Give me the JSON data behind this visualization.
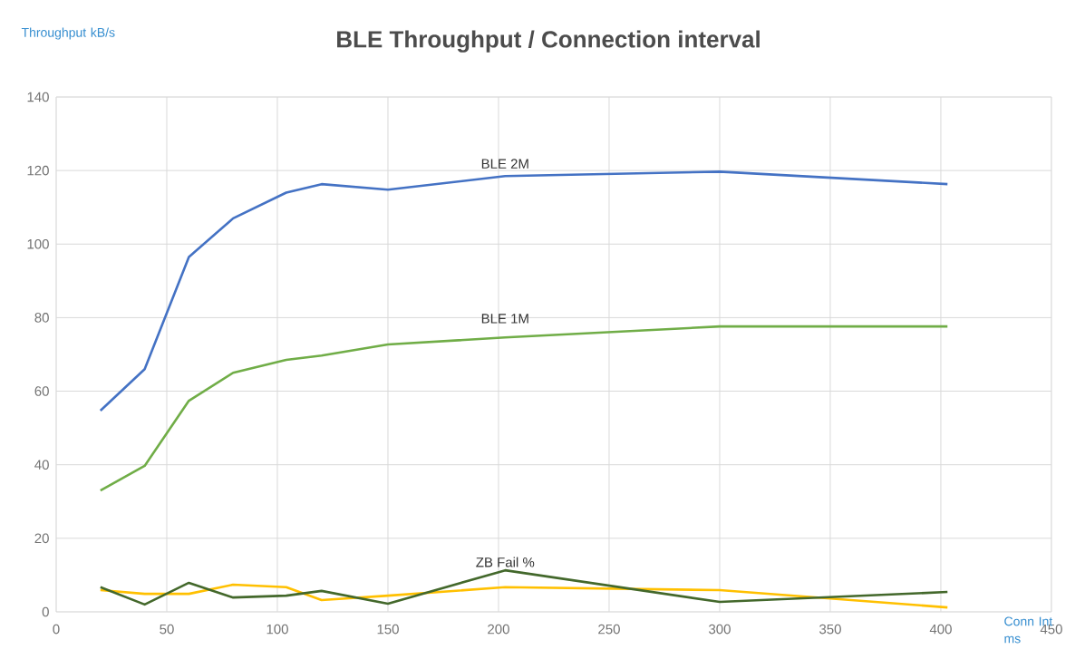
{
  "chart_data": {
    "type": "line",
    "title": "BLE Throughput / Connection interval",
    "ylabel": "Throughput kB/s",
    "xlabel": "Conn Int ms",
    "x": [
      20,
      40,
      60,
      80,
      104,
      120,
      150,
      203,
      300,
      403
    ],
    "series": [
      {
        "name": "BLE 2M",
        "color": "#4472c4",
        "values": [
          54.7,
          66,
          96.5,
          107,
          114,
          116.3,
          114.8,
          118.5,
          119.7,
          116.3
        ]
      },
      {
        "name": "BLE 1M",
        "color": "#70ad47",
        "values": [
          33,
          39.7,
          57.4,
          65,
          68.5,
          69.7,
          72.7,
          74.6,
          77.6,
          77.6
        ]
      },
      {
        "color": "#ffc000",
        "values": [
          5.9,
          4.9,
          4.9,
          7.4,
          6.7,
          3.2,
          4.4,
          6.7,
          5.9,
          1.2
        ]
      },
      {
        "name": "ZB Fail %",
        "color": "#43682b",
        "values": [
          6.7,
          2,
          7.9,
          3.9,
          4.4,
          5.7,
          2.2,
          11.3,
          2.7,
          5.4
        ]
      }
    ],
    "xlim": [
      0,
      450
    ],
    "xticks": [
      0,
      50,
      100,
      150,
      200,
      250,
      300,
      350,
      400,
      450
    ],
    "ylim": [
      0,
      140
    ],
    "yticks": [
      0,
      20,
      40,
      60,
      80,
      100,
      120,
      140
    ],
    "grid": true,
    "legend": false,
    "marker": "none",
    "line_style": "solid"
  }
}
